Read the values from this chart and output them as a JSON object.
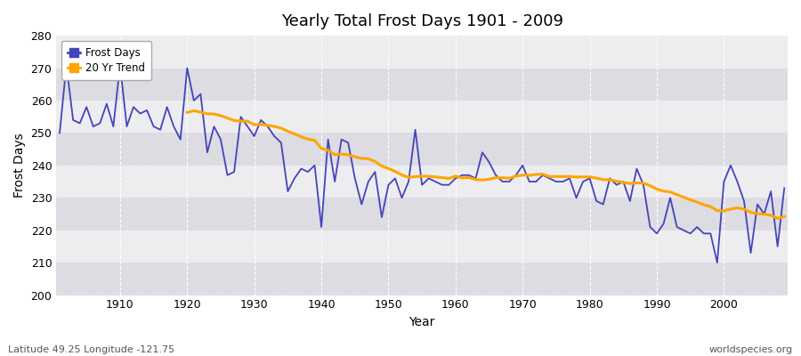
{
  "title": "Yearly Total Frost Days 1901 - 2009",
  "xlabel": "Year",
  "ylabel": "Frost Days",
  "footer_left": "Latitude 49.25 Longitude -121.75",
  "footer_right": "worldspecies.org",
  "ylim": [
    200,
    280
  ],
  "xlim": [
    1901,
    2009
  ],
  "yticks": [
    200,
    210,
    220,
    230,
    240,
    250,
    260,
    270,
    280
  ],
  "frost_days_color": "#4444bb",
  "trend_color": "#FFA500",
  "bg_color": "#e8e8ec",
  "bg_stripe_light": "#ededf0",
  "bg_stripe_dark": "#dcdce2",
  "legend_frost": "Frost Days",
  "legend_trend": "20 Yr Trend",
  "years": [
    1901,
    1902,
    1903,
    1904,
    1905,
    1906,
    1907,
    1908,
    1909,
    1910,
    1911,
    1912,
    1913,
    1914,
    1915,
    1916,
    1917,
    1918,
    1919,
    1920,
    1921,
    1922,
    1923,
    1924,
    1925,
    1926,
    1927,
    1928,
    1929,
    1930,
    1931,
    1932,
    1933,
    1934,
    1935,
    1936,
    1937,
    1938,
    1939,
    1940,
    1941,
    1942,
    1943,
    1944,
    1945,
    1946,
    1947,
    1948,
    1949,
    1950,
    1951,
    1952,
    1953,
    1954,
    1955,
    1956,
    1957,
    1958,
    1959,
    1960,
    1961,
    1962,
    1963,
    1964,
    1965,
    1966,
    1967,
    1968,
    1969,
    1970,
    1971,
    1972,
    1973,
    1974,
    1975,
    1976,
    1977,
    1978,
    1979,
    1980,
    1981,
    1982,
    1983,
    1984,
    1985,
    1986,
    1987,
    1988,
    1989,
    1990,
    1991,
    1992,
    1993,
    1994,
    1995,
    1996,
    1997,
    1998,
    1999,
    2000,
    2001,
    2002,
    2003,
    2004,
    2005,
    2006,
    2007,
    2008,
    2009
  ],
  "frost_values": [
    250,
    271,
    254,
    253,
    258,
    252,
    253,
    259,
    252,
    271,
    252,
    258,
    256,
    257,
    252,
    251,
    258,
    252,
    248,
    270,
    260,
    262,
    244,
    252,
    248,
    237,
    238,
    255,
    252,
    249,
    254,
    252,
    249,
    247,
    232,
    236,
    239,
    238,
    240,
    221,
    248,
    235,
    248,
    247,
    236,
    228,
    235,
    238,
    224,
    234,
    236,
    230,
    235,
    251,
    234,
    236,
    235,
    234,
    234,
    236,
    237,
    237,
    236,
    244,
    241,
    237,
    235,
    235,
    237,
    240,
    235,
    235,
    237,
    236,
    235,
    235,
    236,
    230,
    235,
    236,
    229,
    228,
    236,
    234,
    235,
    229,
    239,
    234,
    221,
    219,
    222,
    230,
    221,
    220,
    219,
    221,
    219,
    219,
    210,
    235,
    240,
    235,
    229,
    213,
    228,
    225,
    232,
    215,
    233
  ]
}
